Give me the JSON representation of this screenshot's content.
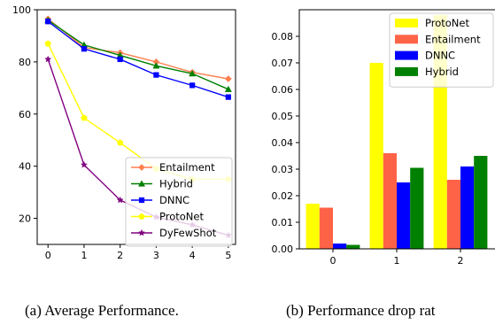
{
  "chart_data": [
    {
      "type": "line",
      "x": [
        0,
        1,
        2,
        3,
        4,
        5
      ],
      "xlim": [
        -0.3,
        5.2
      ],
      "ylim": [
        10,
        100
      ],
      "yticks": [
        20,
        40,
        60,
        80,
        100
      ],
      "grid": false,
      "legend_placement": "bottom-right",
      "caption": "(a) Average Performance.",
      "series": [
        {
          "name": "Entailment",
          "color": "#ff7f50",
          "marker": "diamond",
          "values": [
            96.5,
            85.5,
            83.5,
            80,
            76,
            73.5
          ]
        },
        {
          "name": "Hybrid",
          "color": "#008000",
          "marker": "triangle",
          "values": [
            96,
            86.5,
            82.5,
            78.5,
            75.5,
            69.5
          ]
        },
        {
          "name": "DNNC",
          "color": "#0000ff",
          "marker": "square",
          "values": [
            95.5,
            85,
            81,
            75,
            71,
            66.5
          ]
        },
        {
          "name": "ProtoNet",
          "color": "#ffff00",
          "marker": "pentagon",
          "values": [
            87,
            58.5,
            49,
            39,
            35,
            35
          ]
        },
        {
          "name": "DyFewShot",
          "color": "#800080",
          "marker": "star",
          "values": [
            81,
            40.5,
            27,
            20.5,
            17.5,
            13.5
          ]
        }
      ]
    },
    {
      "type": "bar",
      "categories": [
        "0",
        "1",
        "2"
      ],
      "ylim": [
        0,
        0.09
      ],
      "yticks": [
        0.0,
        0.01,
        0.02,
        0.03,
        0.04,
        0.05,
        0.06,
        0.07,
        0.08
      ],
      "yticklabels": [
        "0.00",
        "0.01",
        "0.02",
        "0.03",
        "0.04",
        "0.05",
        "0.06",
        "0.07",
        "0.08"
      ],
      "grid": false,
      "legend_placement": "top-right",
      "caption": "(b) Performance drop rat",
      "series": [
        {
          "name": "ProtoNet",
          "color": "#ffff00",
          "values": [
            0.017,
            0.07,
            0.088
          ]
        },
        {
          "name": "Entailment",
          "color": "#ff6347",
          "values": [
            0.0155,
            0.036,
            0.026
          ]
        },
        {
          "name": "DNNC",
          "color": "#0000ff",
          "values": [
            0.002,
            0.025,
            0.031
          ]
        },
        {
          "name": "Hybrid",
          "color": "#008000",
          "values": [
            0.0015,
            0.0305,
            0.035
          ]
        }
      ]
    }
  ]
}
